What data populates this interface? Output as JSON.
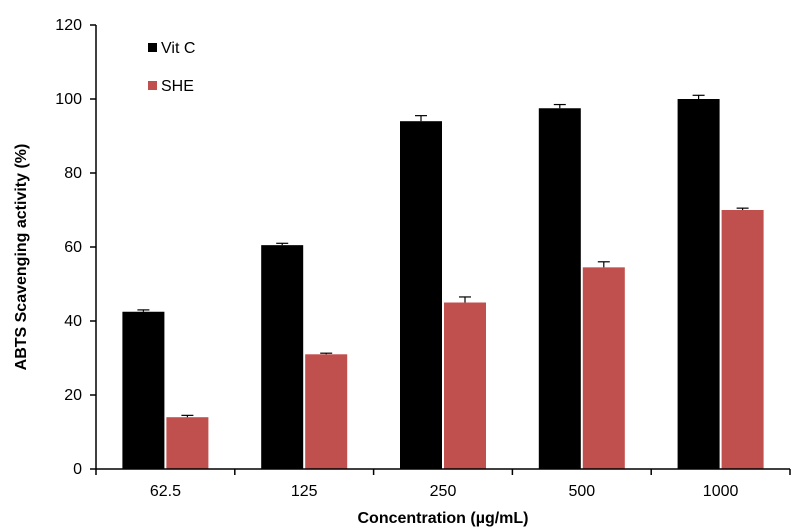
{
  "chart_data": {
    "type": "bar",
    "title": "",
    "xlabel": "Concentration (µg/mL)",
    "ylabel": "ABTS Scavenging activity (%)",
    "categories": [
      "62.5",
      "125",
      "250",
      "500",
      "1000"
    ],
    "ylim": [
      0,
      120
    ],
    "yticks": [
      "0",
      "20",
      "40",
      "60",
      "80",
      "100",
      "120"
    ],
    "grid": false,
    "legend_position": "top-left",
    "series": [
      {
        "name": "Vit C",
        "color": "#000000",
        "values": [
          42.5,
          60.5,
          94,
          97.5,
          100
        ],
        "errors": [
          0.5,
          0.5,
          1.5,
          1,
          1
        ]
      },
      {
        "name": "SHE",
        "color": "#c0504d",
        "values": [
          14,
          31,
          45,
          54.5,
          70
        ],
        "errors": [
          0.5,
          0.3,
          1.5,
          1.5,
          0.5
        ]
      }
    ]
  }
}
